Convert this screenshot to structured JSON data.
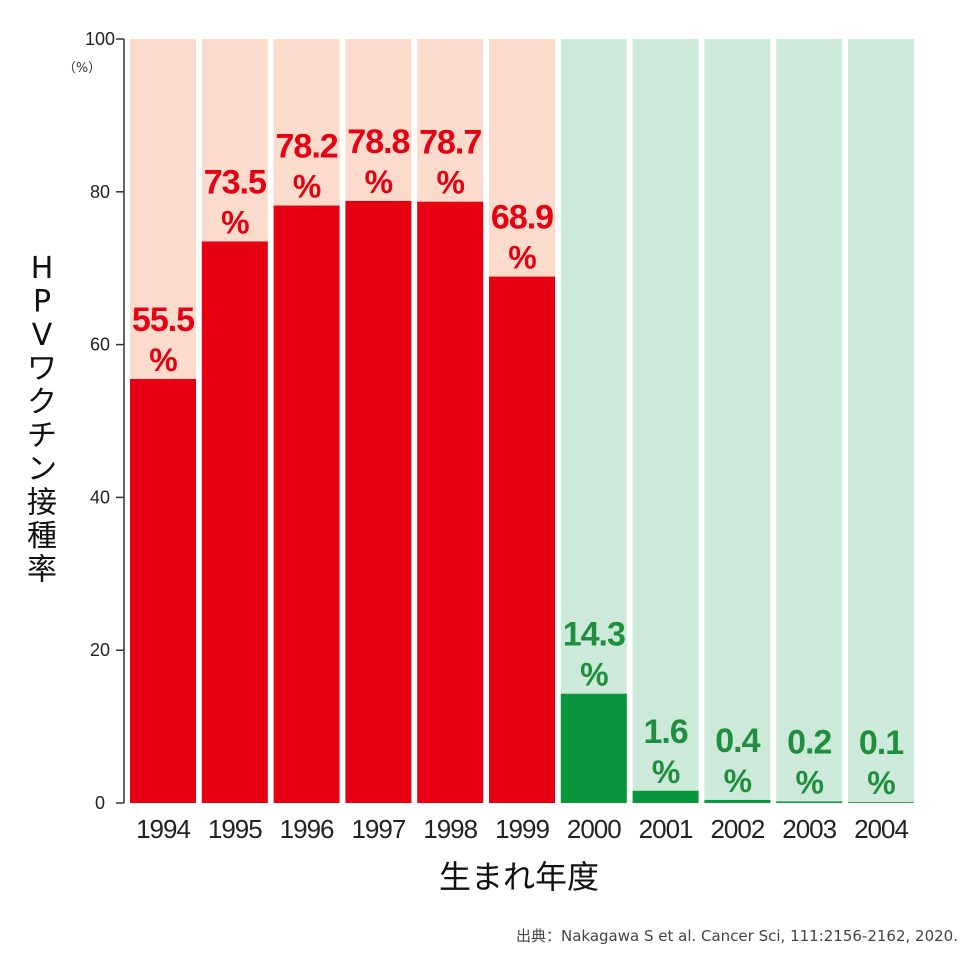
{
  "chart_data": {
    "type": "bar",
    "categories": [
      "1994",
      "1995",
      "1996",
      "1997",
      "1998",
      "1999",
      "2000",
      "2001",
      "2002",
      "2003",
      "2004"
    ],
    "values": [
      55.5,
      73.5,
      78.2,
      78.8,
      78.7,
      68.9,
      14.3,
      1.6,
      0.4,
      0.2,
      0.1
    ],
    "value_labels": [
      "55.5",
      "73.5",
      "78.2",
      "78.8",
      "78.7",
      "68.9",
      "14.3",
      "1.6",
      "0.4",
      "0.2",
      "0.1"
    ],
    "value_suffix": "%",
    "ylabel": "HPVワクチン接種率",
    "ylabel_chars": [
      "H",
      "P",
      "V",
      "ワ",
      "ク",
      "チ",
      "ン",
      "接",
      "種",
      "率"
    ],
    "y_unit": "（%）",
    "xlabel": "生まれ年度",
    "ylim": [
      0,
      100
    ],
    "yticks": [
      "0",
      "20",
      "40",
      "60",
      "80",
      "100"
    ],
    "grid": false,
    "legend": "none",
    "colors": {
      "high_bar": "#e60012",
      "high_bg": "#fadbcc",
      "low_bar": "#0a963c",
      "low_bg": "#cde9d9",
      "high_label": "#e60012",
      "low_label": "#1f8f3f"
    },
    "color_groups": [
      "high",
      "high",
      "high",
      "high",
      "high",
      "high",
      "low",
      "low",
      "low",
      "low",
      "low"
    ]
  },
  "source": "出典：Nakagawa S et al. Cancer Sci, 111:2156-2162, 2020."
}
